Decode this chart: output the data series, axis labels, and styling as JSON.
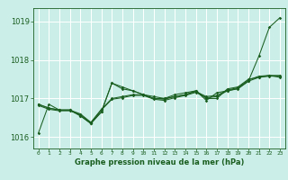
{
  "xlabel": "Graphe pression niveau de la mer (hPa)",
  "bg_color": "#cceee8",
  "grid_color": "#ffffff",
  "line_color": "#1a5e20",
  "ylim": [
    1015.7,
    1019.35
  ],
  "yticks": [
    1016,
    1017,
    1018,
    1019
  ],
  "xticks": [
    0,
    1,
    2,
    3,
    4,
    5,
    6,
    7,
    8,
    9,
    10,
    11,
    12,
    13,
    14,
    15,
    16,
    17,
    18,
    19,
    20,
    21,
    22,
    23
  ],
  "s1": [
    1016.1,
    1016.85,
    1016.7,
    1016.7,
    1016.55,
    1016.35,
    1016.65,
    1017.4,
    1017.25,
    1017.2,
    1017.1,
    1017.05,
    1017.0,
    1017.1,
    1017.15,
    1017.2,
    1016.95,
    1017.15,
    1017.2,
    1017.25,
    1017.45,
    1018.1,
    1018.85,
    1019.1
  ],
  "s2": [
    1016.85,
    1016.75,
    1016.7,
    1016.7,
    1016.55,
    1016.35,
    1016.65,
    1017.4,
    1017.3,
    1017.2,
    1017.1,
    1017.0,
    1017.0,
    1017.05,
    1017.1,
    1017.2,
    1017.0,
    1017.0,
    1017.25,
    1017.3,
    1017.5,
    1017.55,
    1017.6,
    1017.55
  ],
  "s3": [
    1016.85,
    1016.75,
    1016.7,
    1016.7,
    1016.6,
    1016.38,
    1016.72,
    1017.0,
    1017.05,
    1017.1,
    1017.1,
    1017.0,
    1016.98,
    1017.05,
    1017.1,
    1017.18,
    1017.05,
    1017.08,
    1017.22,
    1017.28,
    1017.48,
    1017.58,
    1017.6,
    1017.6
  ],
  "s4": [
    1016.82,
    1016.72,
    1016.68,
    1016.68,
    1016.58,
    1016.36,
    1016.7,
    1016.98,
    1017.02,
    1017.08,
    1017.08,
    1016.98,
    1016.95,
    1017.02,
    1017.08,
    1017.16,
    1017.02,
    1017.05,
    1017.2,
    1017.26,
    1017.45,
    1017.55,
    1017.58,
    1017.58
  ],
  "xlabel_fontsize": 6.0,
  "ytick_fontsize": 6.0,
  "xtick_fontsize": 4.5
}
